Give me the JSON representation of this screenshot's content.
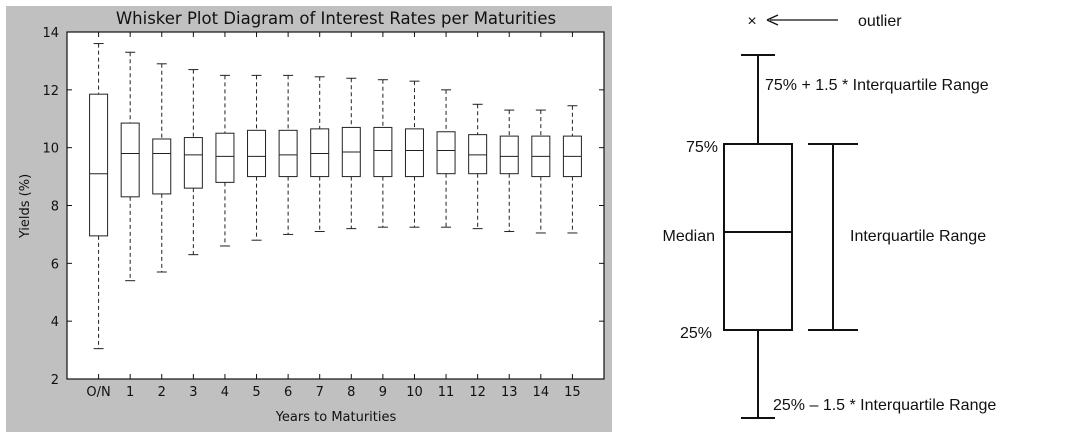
{
  "chart_data": [
    {
      "type": "box",
      "title": "Whisker Plot Diagram of Interest Rates per Maturities",
      "xlabel": "Years to Maturities",
      "ylabel": "Yields (%)",
      "ylim": [
        2,
        14
      ],
      "yticks": [
        "2",
        "4",
        "6",
        "8",
        "10",
        "12",
        "14"
      ],
      "categories": [
        "O/N",
        "1",
        "2",
        "3",
        "4",
        "5",
        "6",
        "7",
        "8",
        "9",
        "10",
        "11",
        "12",
        "13",
        "14",
        "15"
      ],
      "boxes": [
        {
          "category": "O/N",
          "whisker_low": 3.05,
          "q1": 6.95,
          "median": 9.1,
          "q3": 11.85,
          "whisker_high": 13.6
        },
        {
          "category": "1",
          "whisker_low": 5.4,
          "q1": 8.3,
          "median": 9.8,
          "q3": 10.85,
          "whisker_high": 13.3
        },
        {
          "category": "2",
          "whisker_low": 5.7,
          "q1": 8.4,
          "median": 9.8,
          "q3": 10.3,
          "whisker_high": 12.9
        },
        {
          "category": "3",
          "whisker_low": 6.3,
          "q1": 8.6,
          "median": 9.75,
          "q3": 10.35,
          "whisker_high": 12.7
        },
        {
          "category": "4",
          "whisker_low": 6.6,
          "q1": 8.8,
          "median": 9.7,
          "q3": 10.5,
          "whisker_high": 12.5
        },
        {
          "category": "5",
          "whisker_low": 6.8,
          "q1": 9.0,
          "median": 9.7,
          "q3": 10.6,
          "whisker_high": 12.5
        },
        {
          "category": "6",
          "whisker_low": 7.0,
          "q1": 9.0,
          "median": 9.75,
          "q3": 10.6,
          "whisker_high": 12.5
        },
        {
          "category": "7",
          "whisker_low": 7.1,
          "q1": 9.0,
          "median": 9.8,
          "q3": 10.65,
          "whisker_high": 12.45
        },
        {
          "category": "8",
          "whisker_low": 7.2,
          "q1": 9.0,
          "median": 9.85,
          "q3": 10.7,
          "whisker_high": 12.4
        },
        {
          "category": "9",
          "whisker_low": 7.25,
          "q1": 9.0,
          "median": 9.9,
          "q3": 10.7,
          "whisker_high": 12.35
        },
        {
          "category": "10",
          "whisker_low": 7.25,
          "q1": 9.0,
          "median": 9.9,
          "q3": 10.65,
          "whisker_high": 12.3
        },
        {
          "category": "11",
          "whisker_low": 7.25,
          "q1": 9.1,
          "median": 9.9,
          "q3": 10.55,
          "whisker_high": 12.0
        },
        {
          "category": "12",
          "whisker_low": 7.2,
          "q1": 9.1,
          "median": 9.75,
          "q3": 10.45,
          "whisker_high": 11.5
        },
        {
          "category": "13",
          "whisker_low": 7.1,
          "q1": 9.1,
          "median": 9.7,
          "q3": 10.4,
          "whisker_high": 11.3
        },
        {
          "category": "14",
          "whisker_low": 7.05,
          "q1": 9.0,
          "median": 9.7,
          "q3": 10.4,
          "whisker_high": 11.3
        },
        {
          "category": "15",
          "whisker_low": 7.05,
          "q1": 9.0,
          "median": 9.7,
          "q3": 10.4,
          "whisker_high": 11.45
        }
      ],
      "colors": {
        "frame_background": "#c0c0c0",
        "plot_background": "#ffffff",
        "box_stroke": "#222222"
      }
    }
  ],
  "legend_diagram": {
    "outlier_marker": "×",
    "outlier_label": "outlier",
    "upper_whisker_label": "75% + 1.5 * Interquartile Range",
    "q3_label": "75%",
    "median_label": "Median",
    "iqr_label": "Interquartile Range",
    "q1_label": "25%",
    "lower_whisker_label": "25% – 1.5 * Interquartile Range"
  }
}
